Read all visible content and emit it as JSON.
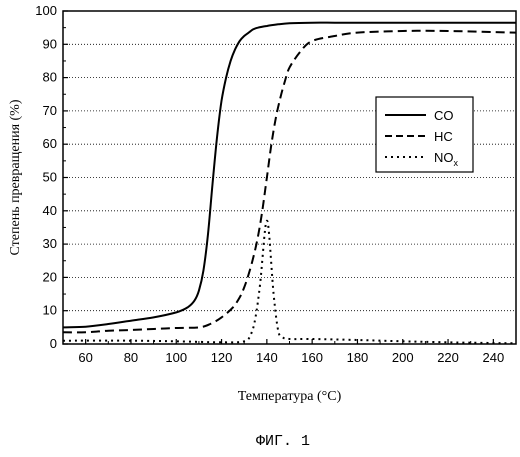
{
  "chart_data": {
    "type": "line",
    "xlabel": "Температура (°C)",
    "ylabel": "Степень превращения (%)",
    "xlim": [
      50,
      250
    ],
    "ylim": [
      0,
      100
    ],
    "xticks": [
      60,
      80,
      100,
      120,
      140,
      160,
      180,
      200,
      220,
      240
    ],
    "yticks": [
      0,
      10,
      20,
      30,
      40,
      50,
      60,
      70,
      80,
      90,
      100
    ],
    "grid": "horizontal dotted",
    "legend_position": "right",
    "series": [
      {
        "name": "CO",
        "style": "solid",
        "x": [
          50,
          60,
          70,
          80,
          90,
          100,
          105,
          108,
          110,
          112,
          114,
          116,
          118,
          120,
          122,
          124,
          126,
          128,
          130,
          132,
          134,
          136,
          140,
          145,
          150,
          160,
          170,
          180,
          200,
          220,
          250
        ],
        "y": [
          5,
          5.2,
          6,
          7,
          8,
          9.5,
          11,
          13,
          16,
          22,
          33,
          48,
          62,
          73,
          80,
          85,
          88.5,
          91,
          92.5,
          93.5,
          94.5,
          95,
          95.5,
          96,
          96.3,
          96.5,
          96.5,
          96.5,
          96.5,
          96.5,
          96.5
        ]
      },
      {
        "name": "HC",
        "style": "dashed",
        "x": [
          50,
          60,
          70,
          80,
          90,
          100,
          110,
          115,
          120,
          125,
          128,
          130,
          132,
          134,
          136,
          138,
          140,
          142,
          144,
          146,
          148,
          150,
          155,
          160,
          170,
          180,
          200,
          220,
          250
        ],
        "y": [
          3.5,
          3.5,
          4,
          4.2,
          4.5,
          4.8,
          5,
          6,
          8,
          11,
          14,
          17,
          21,
          26,
          32,
          40,
          50,
          60,
          68,
          74,
          79,
          83,
          88,
          91,
          92.5,
          93.5,
          94,
          94,
          93.5
        ]
      },
      {
        "name": "NOx",
        "style": "dotted",
        "x": [
          50,
          80,
          100,
          120,
          130,
          133,
          135,
          137,
          139,
          140,
          141,
          143,
          145,
          147,
          150,
          160,
          180,
          200,
          220,
          250
        ],
        "y": [
          1,
          1,
          0.8,
          0.5,
          0.8,
          3,
          8,
          18,
          33,
          37,
          33,
          15,
          4,
          2,
          1.5,
          1.5,
          1.2,
          0.8,
          0.5,
          0.2
        ]
      }
    ],
    "legend": [
      {
        "label": "CO",
        "sub": ""
      },
      {
        "label": "HC",
        "sub": ""
      },
      {
        "label": "NO",
        "sub": "x"
      }
    ]
  },
  "caption": "ФИГ. 1"
}
